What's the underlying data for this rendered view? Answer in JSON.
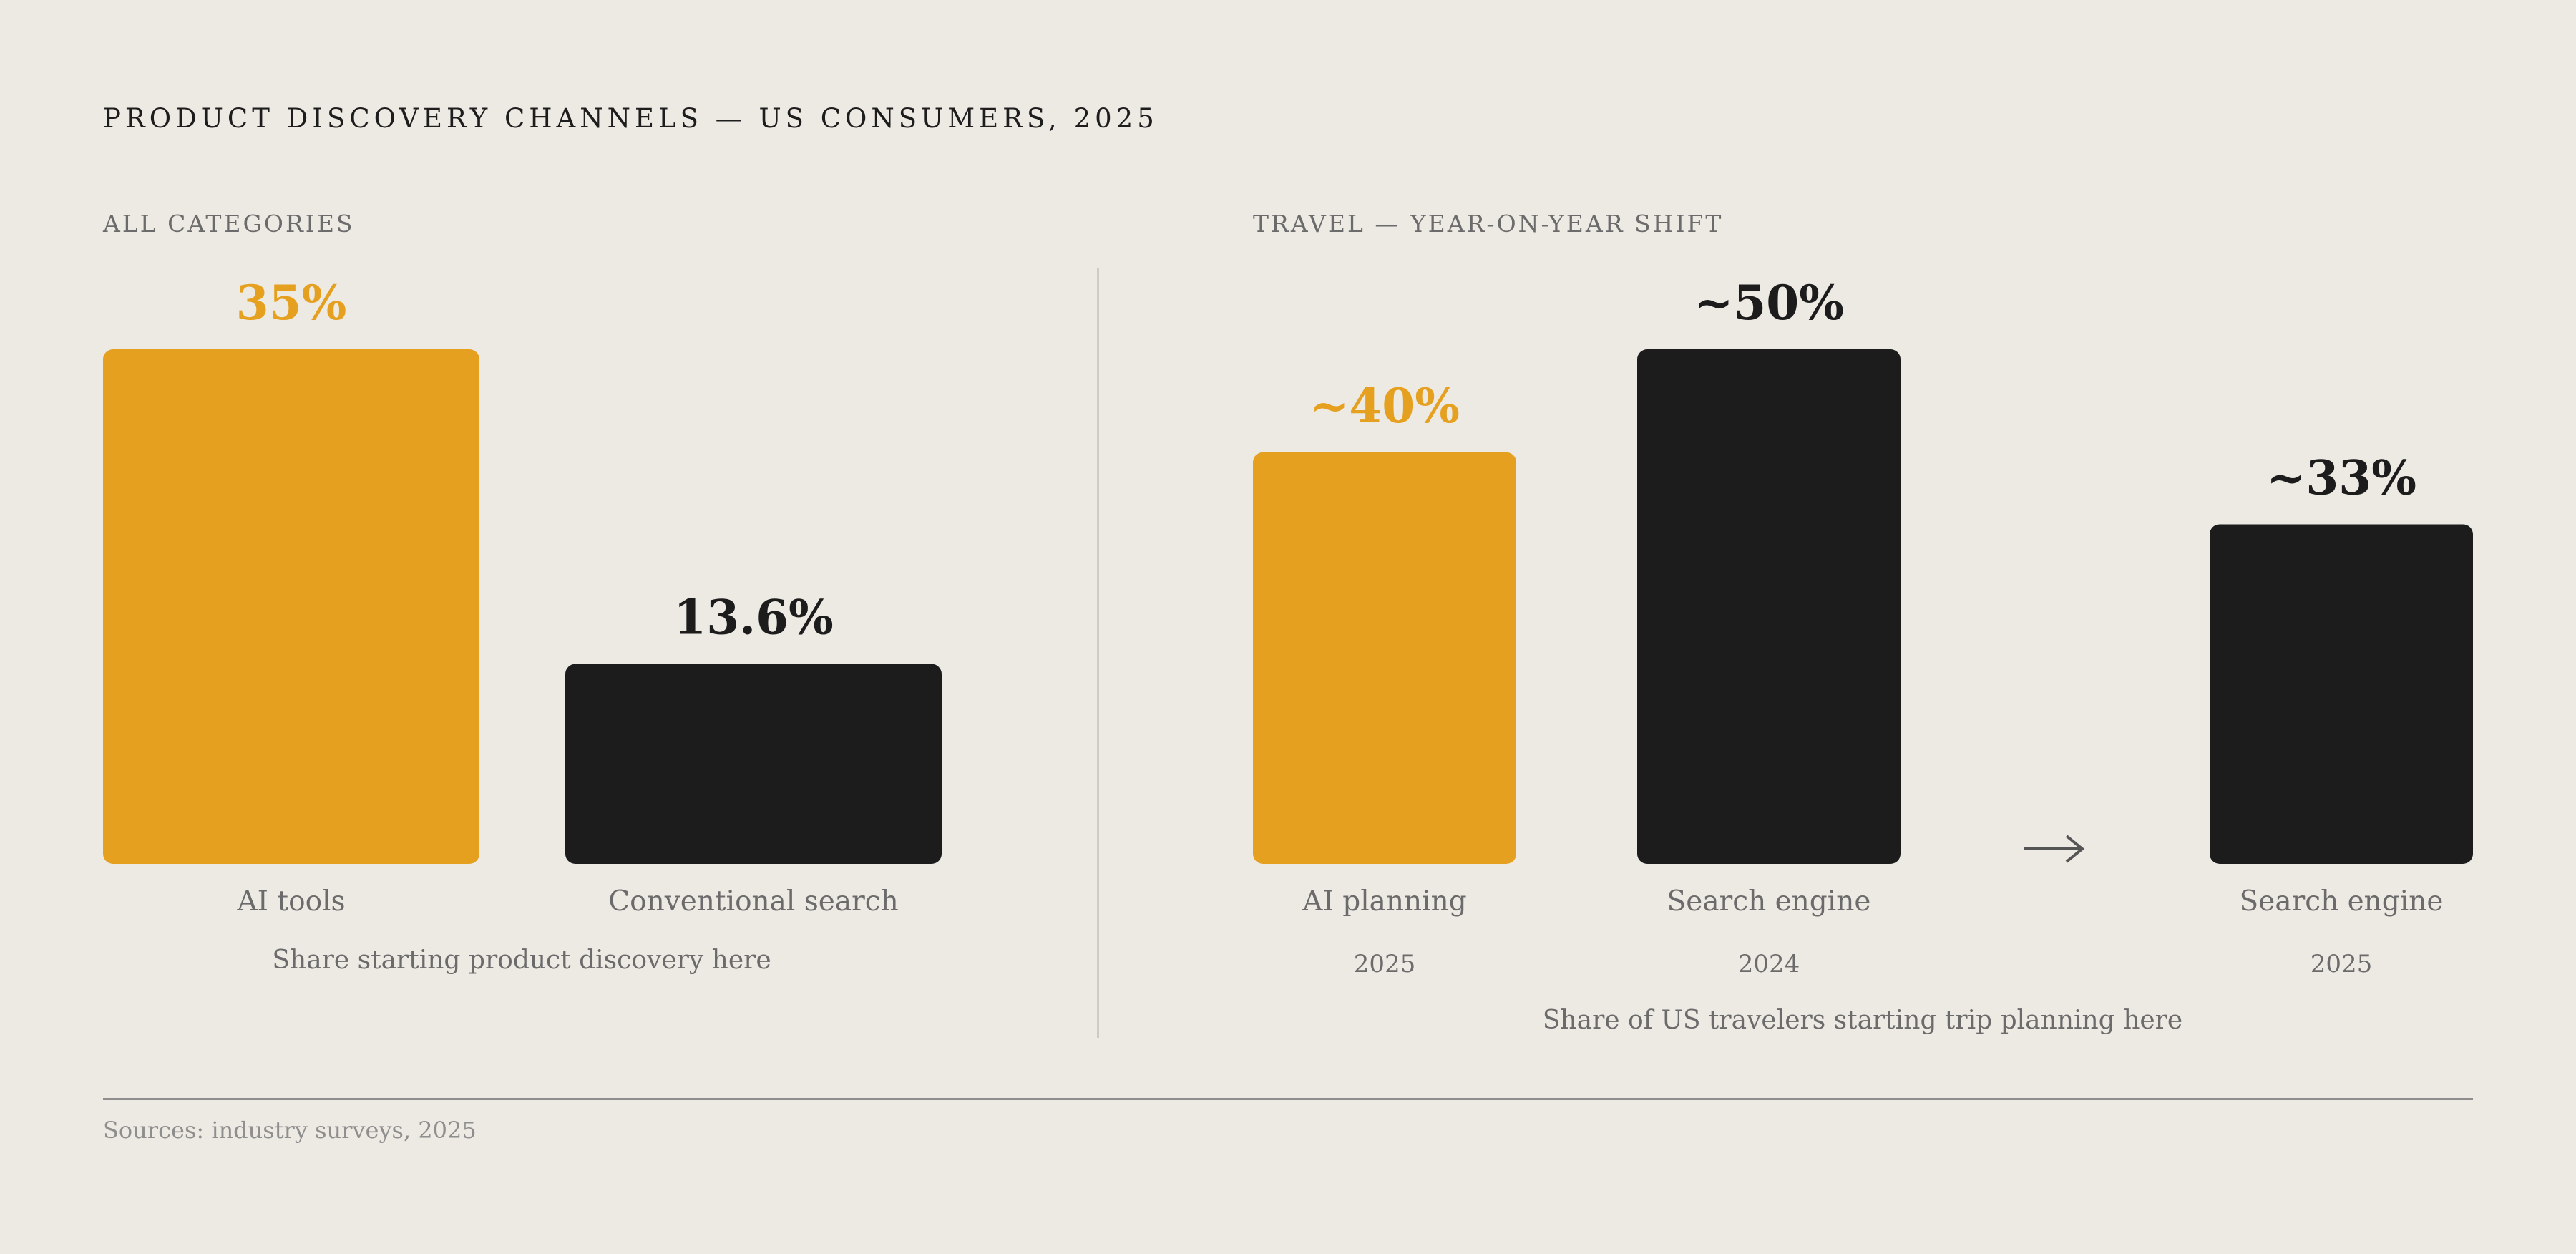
{
  "title": "PRODUCT DISCOVERY CHANNELS — US CONSUMERS, 2025",
  "source": "Sources: industry surveys, 2025",
  "colors": {
    "background": "#edeae4",
    "accent": "#e5a020",
    "dark": "#1c1c1c",
    "muted_text": "#6b6b6b"
  },
  "chart_data": [
    {
      "type": "bar",
      "subtitle": "ALL CATEGORIES",
      "categories": [
        "AI tools",
        "Conventional search"
      ],
      "values": [
        35,
        13.6
      ],
      "value_labels": [
        "35%",
        "13.6%"
      ],
      "colors": [
        "accent",
        "dark"
      ],
      "caption": "Share starting product discovery here",
      "ylim": [
        0,
        35
      ],
      "grid": false
    },
    {
      "type": "bar",
      "subtitle": "TRAVEL — YEAR-ON-YEAR SHIFT",
      "categories": [
        "AI planning",
        "Search engine",
        "Search engine"
      ],
      "years": [
        "2025",
        "2024",
        "2025"
      ],
      "values": [
        40,
        50,
        33
      ],
      "value_labels": [
        "~40%",
        "~50%",
        "~33%"
      ],
      "colors": [
        "accent",
        "dark",
        "dark"
      ],
      "arrow": "→",
      "caption": "Share of US travelers starting trip planning here",
      "ylim": [
        0,
        50
      ],
      "grid": false
    }
  ]
}
